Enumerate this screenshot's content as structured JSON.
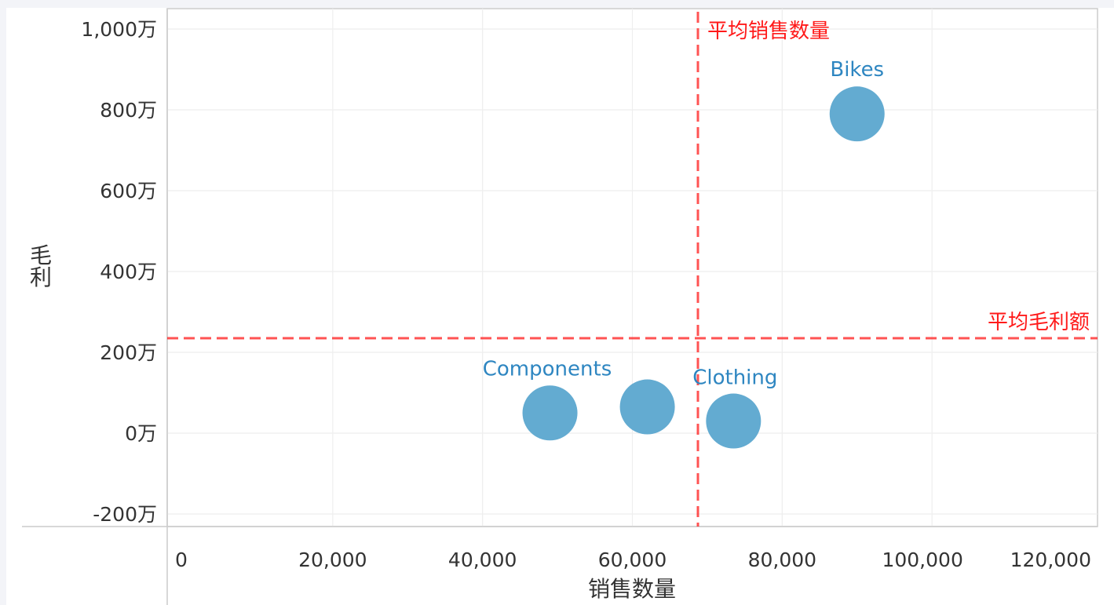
{
  "chart_data": {
    "type": "scatter",
    "xlabel": "销售数量",
    "ylabel": "毛利",
    "xlim": [
      0,
      120000
    ],
    "ylim": [
      -2000000,
      10000000
    ],
    "x_ticks": [
      {
        "value": 0,
        "label": "0"
      },
      {
        "value": 20000,
        "label": "20,000"
      },
      {
        "value": 40000,
        "label": "40,000"
      },
      {
        "value": 60000,
        "label": "60,000"
      },
      {
        "value": 80000,
        "label": "80,000"
      },
      {
        "value": 100000,
        "label": "100,000"
      },
      {
        "value": 120000,
        "label": "120,000"
      }
    ],
    "y_ticks": [
      {
        "value": 10000000,
        "label": "1,000万"
      },
      {
        "value": 8000000,
        "label": "800万"
      },
      {
        "value": 6000000,
        "label": "600万"
      },
      {
        "value": 4000000,
        "label": "400万"
      },
      {
        "value": 2000000,
        "label": "200万"
      },
      {
        "value": 0,
        "label": "0万"
      },
      {
        "value": -2000000,
        "label": "-200万"
      }
    ],
    "grid": true,
    "points": [
      {
        "x": 90000,
        "y": 7900000,
        "label": "Bikes"
      },
      {
        "x": 49000,
        "y": 500000,
        "label": "Components"
      },
      {
        "x": 62000,
        "y": 650000,
        "label": ""
      },
      {
        "x": 73500,
        "y": 300000,
        "label": "Clothing"
      }
    ],
    "reference_lines": [
      {
        "axis": "x",
        "value": 68750,
        "label": "平均销售数量"
      },
      {
        "axis": "y",
        "value": 2350000,
        "label": "平均毛利额"
      }
    ],
    "colors": {
      "point": "#5ba7cf",
      "point_label": "#2e86c1",
      "reference": "#ff1a1a",
      "grid": "#eeeeee",
      "axis": "#cccccc"
    }
  }
}
